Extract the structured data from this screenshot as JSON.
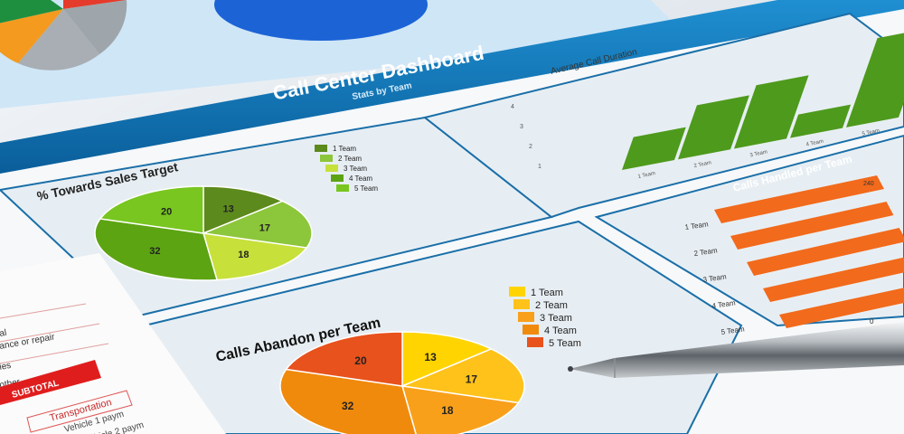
{
  "dashboard": {
    "title": "Call Center Dashboard",
    "subtitle": "Stats by Team"
  },
  "sales_target": {
    "title": "% Towards Sales Target",
    "values": [
      13,
      17,
      18,
      32,
      20
    ],
    "legend": [
      "1 Team",
      "2 Team",
      "3 Team",
      "4 Team",
      "5 Team"
    ],
    "colors": [
      "#5d8a1c",
      "#8cc63a",
      "#c7e03a",
      "#5da413",
      "#78c61f"
    ]
  },
  "abandon": {
    "title": "Calls Abandon per Team",
    "values": [
      13,
      17,
      18,
      32,
      20
    ],
    "legend": [
      "1 Team",
      "2 Team",
      "3 Team",
      "4 Team",
      "5 Team"
    ],
    "colors": [
      "#ffd400",
      "#ffc21a",
      "#f9a01b",
      "#f08a0c",
      "#e8521c"
    ]
  },
  "avg_duration": {
    "title": "Average Call Duration",
    "values": [
      1.4,
      2.3,
      2.7,
      1.0,
      3.8
    ],
    "ticks": [
      "1",
      "2",
      "3",
      "4"
    ],
    "categories": [
      "1 Team",
      "2 Team",
      "3 Team",
      "4 Team",
      "5 Team"
    ],
    "color": "#4e9a1c"
  },
  "calls_handled": {
    "title": "Calls Handled per Team",
    "values": [
      240,
      230,
      225,
      230,
      235
    ],
    "top_label": "240",
    "axis_zero": "0",
    "categories": [
      "1 Team",
      "2 Team",
      "3 Team",
      "4 Team",
      "5 Team"
    ],
    "color": "#f26a1b"
  },
  "side_sheet": {
    "lines": [
      "al",
      "ance or repair",
      "ies",
      "other"
    ],
    "subtotal": "SUBTOTAL",
    "transport": "Transportation",
    "vehicle1": "Vehicle 1 paym",
    "vehicle2": "Vehicle 2 paym"
  }
}
